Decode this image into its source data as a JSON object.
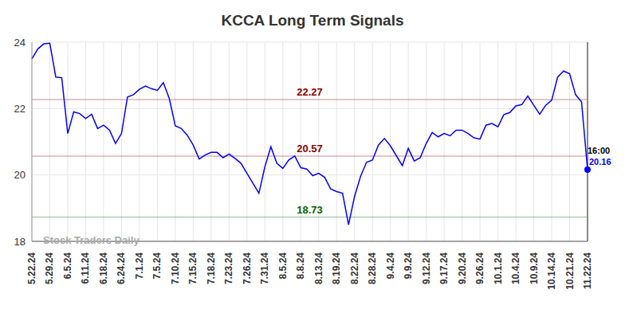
{
  "chart_data": {
    "type": "line",
    "title": "KCCA Long Term Signals",
    "categories": [
      "5.22.24",
      null,
      null,
      "5.29.24",
      null,
      null,
      "6.5.24",
      null,
      null,
      "6.11.24",
      null,
      null,
      "6.18.24",
      null,
      null,
      "6.24.24",
      null,
      null,
      "7.1.24",
      null,
      null,
      "7.5.24",
      null,
      null,
      "7.10.24",
      null,
      null,
      "7.15.24",
      null,
      null,
      "7.18.24",
      null,
      null,
      "7.23.24",
      null,
      null,
      "7.26.24",
      null,
      null,
      "7.31.24",
      null,
      null,
      "8.5.24",
      null,
      null,
      "8.8.24",
      null,
      null,
      "8.13.24",
      null,
      null,
      "8.19.24",
      null,
      null,
      "8.22.24",
      null,
      null,
      "8.28.24",
      null,
      null,
      "9.4.24",
      null,
      null,
      "9.9.24",
      null,
      null,
      "9.12.24",
      null,
      null,
      "9.17.24",
      null,
      null,
      "9.20.24",
      null,
      null,
      "9.26.24",
      null,
      null,
      "10.1.24",
      null,
      null,
      "10.4.24",
      null,
      null,
      "10.9.24",
      null,
      null,
      "10.14.24",
      null,
      null,
      "10.21.24",
      null,
      null,
      "11.22.24"
    ],
    "values": [
      23.5,
      23.8,
      23.95,
      23.97,
      22.95,
      22.93,
      21.25,
      21.9,
      21.85,
      21.7,
      21.83,
      21.4,
      21.5,
      21.35,
      20.95,
      21.25,
      22.35,
      22.42,
      22.58,
      22.68,
      22.6,
      22.55,
      22.78,
      22.3,
      21.48,
      21.4,
      21.2,
      20.9,
      20.48,
      20.6,
      20.68,
      20.68,
      20.52,
      20.63,
      20.5,
      20.35,
      20.05,
      19.75,
      19.45,
      20.25,
      20.85,
      20.35,
      20.2,
      20.45,
      20.57,
      20.22,
      20.18,
      19.98,
      20.05,
      19.93,
      19.58,
      19.5,
      19.45,
      18.5,
      19.35,
      19.95,
      20.38,
      20.45,
      20.9,
      21.1,
      20.88,
      20.58,
      20.28,
      20.8,
      20.42,
      20.52,
      20.95,
      21.28,
      21.15,
      21.25,
      21.18,
      21.35,
      21.35,
      21.25,
      21.12,
      21.08,
      21.5,
      21.55,
      21.45,
      21.82,
      21.88,
      22.08,
      22.12,
      22.38,
      22.1,
      21.83,
      22.1,
      22.25,
      22.95,
      23.13,
      23.05,
      22.42,
      22.2,
      20.16
    ],
    "color": "#0000ff",
    "ylim": [
      18,
      24
    ],
    "yticks": [
      18,
      20,
      22,
      24
    ],
    "grid": true,
    "levels": [
      {
        "value": 22.27,
        "color": "#8b0000"
      },
      {
        "value": 20.57,
        "color": "#8b0000"
      },
      {
        "value": 18.73,
        "color": "#006400"
      }
    ],
    "last_time": "16:00",
    "watermark": "Stock Traders Daily"
  }
}
